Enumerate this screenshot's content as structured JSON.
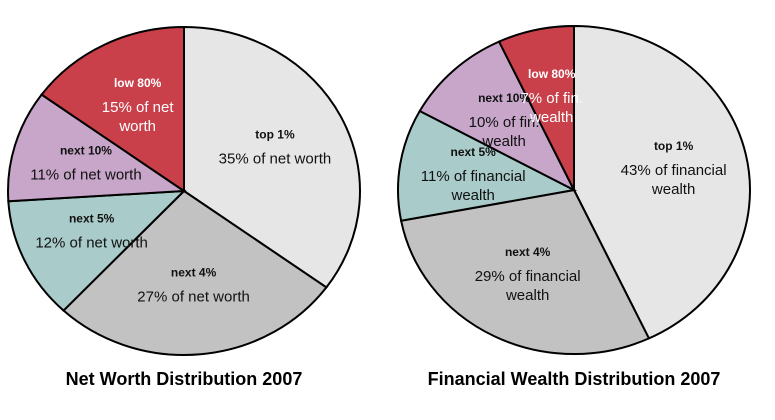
{
  "chart_data": [
    {
      "type": "pie",
      "title": "Net Worth Distribution 2007",
      "categories": [
        "top 1%",
        "next 4%",
        "next 5%",
        "next 10%",
        "low 80%"
      ],
      "values": [
        35,
        27,
        12,
        11,
        15
      ],
      "value_labels": [
        "35% of net worth",
        "27% of net worth",
        "12% of net worth",
        "11% of net worth",
        "15% of net worth"
      ],
      "colors": [
        "#e6e6e6",
        "#c2c2c2",
        "#a9cbca",
        "#c7a6c9",
        "#c9404b"
      ]
    },
    {
      "type": "pie",
      "title": "Financial Wealth Distribution 2007",
      "categories": [
        "top 1%",
        "next 4%",
        "next 5%",
        "next 10%",
        "low 80%"
      ],
      "values": [
        43,
        29,
        11,
        10,
        7
      ],
      "value_labels": [
        "43% of financial wealth",
        "29% of financial wealth",
        "11% of financial wealth",
        "10% of fin. wealth",
        "7% of fin. wealth"
      ],
      "colors": [
        "#e6e6e6",
        "#c2c2c2",
        "#a9cbca",
        "#c7a6c9",
        "#c9404b"
      ]
    }
  ]
}
